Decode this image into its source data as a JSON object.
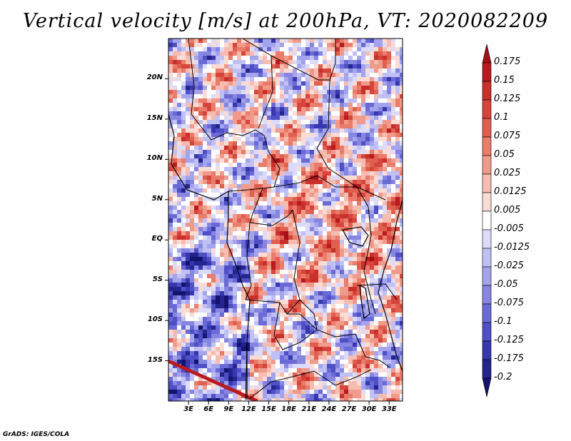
{
  "title": "Vertical velocity [m/s] at 200hPa, VT: 2020082209",
  "credit": "GrADS: IGES/COLA",
  "map": {
    "lon_labels": [
      "3E",
      "6E",
      "9E",
      "12E",
      "15E",
      "18E",
      "21E",
      "24E",
      "27E",
      "30E",
      "33E"
    ],
    "lat_labels": [
      "20N",
      "15N",
      "10N",
      "5N",
      "EQ",
      "5S",
      "10S",
      "15S"
    ],
    "lon_range": [
      0,
      35
    ],
    "lat_range": [
      -20,
      25
    ]
  },
  "colorbar": {
    "labels": [
      "0.175",
      "0.15",
      "0.125",
      "0.1",
      "0.075",
      "0.05",
      "0.025",
      "0.0125",
      "0.005",
      "-0.005",
      "-0.0125",
      "-0.025",
      "-0.05",
      "-0.075",
      "-0.1",
      "-0.125",
      "-0.175",
      "-0.2"
    ],
    "colors": [
      "#a50f15",
      "#b81a1f",
      "#c9302c",
      "#d6443c",
      "#e0604f",
      "#e97c6b",
      "#f09a8b",
      "#f6bcb0",
      "#fbdcd4",
      "#ffffff",
      "#dcdcfa",
      "#c0c0f4",
      "#a4a4ec",
      "#8686e2",
      "#6a6ad6",
      "#4f4fc6",
      "#3737b0",
      "#24248e",
      "#14146e"
    ]
  }
}
